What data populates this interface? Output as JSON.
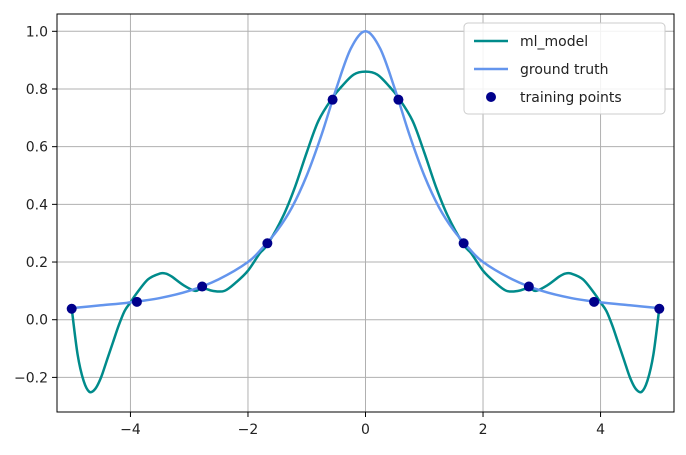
{
  "chart_data": {
    "type": "line",
    "title": "",
    "xlabel": "",
    "ylabel": "",
    "xlim": [
      -5.25,
      5.25
    ],
    "ylim": [
      -0.32,
      1.06
    ],
    "grid": true,
    "legend_position": "top-right",
    "x_ticks": [
      -4,
      -2,
      0,
      2,
      4
    ],
    "x_tick_labels": [
      "−4",
      "−2",
      "0",
      "2",
      "4"
    ],
    "y_ticks": [
      -0.2,
      0.0,
      0.2,
      0.4,
      0.6,
      0.8,
      1.0
    ],
    "y_tick_labels": [
      "−0.2",
      "0.0",
      "0.2",
      "0.4",
      "0.6",
      "0.8",
      "1.0"
    ],
    "series": [
      {
        "name": "ml_model",
        "kind": "line",
        "color": "#008b8b",
        "x": [
          -5.0,
          -4.9,
          -4.8,
          -4.7,
          -4.6,
          -4.5,
          -4.4,
          -4.3,
          -4.2,
          -4.1,
          -4.0,
          -3.9,
          -3.7,
          -3.5,
          -3.4,
          -3.3,
          -3.1,
          -2.9,
          -2.78,
          -2.6,
          -2.4,
          -2.2,
          -2.0,
          -1.8,
          -1.67,
          -1.4,
          -1.2,
          -1.0,
          -0.8,
          -0.56,
          -0.4,
          -0.2,
          0.0,
          0.2,
          0.4,
          0.56,
          0.8,
          1.0,
          1.2,
          1.4,
          1.67,
          1.8,
          2.0,
          2.2,
          2.4,
          2.6,
          2.78,
          2.9,
          3.1,
          3.3,
          3.4,
          3.5,
          3.7,
          3.9,
          4.0,
          4.1,
          4.2,
          4.3,
          4.4,
          4.5,
          4.6,
          4.7,
          4.8,
          4.9,
          5.0
        ],
        "y": [
          0.04,
          -0.12,
          -0.21,
          -0.25,
          -0.24,
          -0.2,
          -0.14,
          -0.08,
          -0.02,
          0.03,
          0.06,
          0.09,
          0.14,
          0.16,
          0.16,
          0.15,
          0.12,
          0.1,
          0.11,
          0.1,
          0.1,
          0.13,
          0.17,
          0.23,
          0.26,
          0.36,
          0.46,
          0.58,
          0.69,
          0.77,
          0.81,
          0.85,
          0.86,
          0.85,
          0.81,
          0.77,
          0.69,
          0.58,
          0.46,
          0.36,
          0.26,
          0.23,
          0.17,
          0.13,
          0.1,
          0.1,
          0.11,
          0.1,
          0.12,
          0.15,
          0.16,
          0.16,
          0.14,
          0.09,
          0.06,
          0.03,
          -0.02,
          -0.08,
          -0.14,
          -0.2,
          -0.24,
          -0.25,
          -0.21,
          -0.12,
          0.04
        ]
      },
      {
        "name": "ground truth",
        "kind": "line",
        "color": "#6495ed",
        "x": [
          -5.0,
          -4.5,
          -4.0,
          -3.5,
          -3.0,
          -2.5,
          -2.0,
          -1.75,
          -1.5,
          -1.25,
          -1.0,
          -0.75,
          -0.5,
          -0.25,
          0.0,
          0.25,
          0.5,
          0.75,
          1.0,
          1.25,
          1.5,
          1.75,
          2.0,
          2.5,
          3.0,
          3.5,
          4.0,
          4.5,
          5.0
        ],
        "y": [
          0.04,
          0.05,
          0.06,
          0.075,
          0.1,
          0.14,
          0.2,
          0.25,
          0.31,
          0.39,
          0.5,
          0.64,
          0.8,
          0.94,
          1.0,
          0.94,
          0.8,
          0.64,
          0.5,
          0.39,
          0.31,
          0.25,
          0.2,
          0.14,
          0.1,
          0.075,
          0.06,
          0.05,
          0.04
        ]
      },
      {
        "name": "training points",
        "kind": "scatter",
        "color": "#00008b",
        "x": [
          -5.0,
          -3.89,
          -2.78,
          -1.67,
          -0.56,
          0.56,
          1.67,
          2.78,
          3.89,
          5.0
        ],
        "y": [
          0.038,
          0.062,
          0.115,
          0.265,
          0.763,
          0.763,
          0.265,
          0.115,
          0.062,
          0.038
        ]
      }
    ]
  }
}
